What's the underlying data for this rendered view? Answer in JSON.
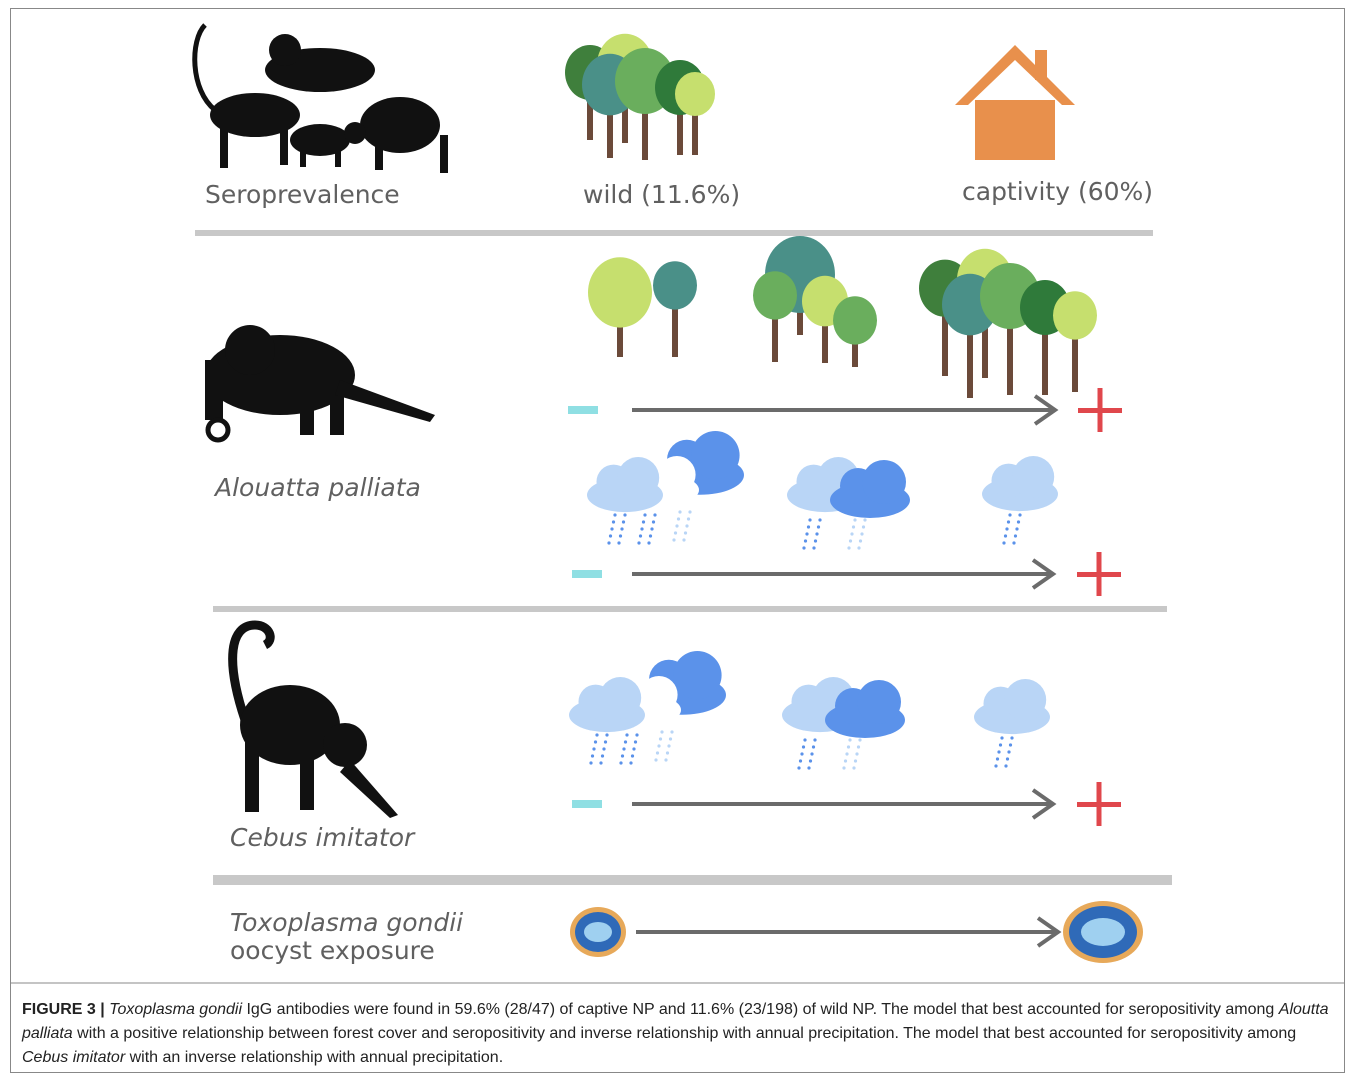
{
  "figure": {
    "labels": {
      "seroprevalence": "Seroprevalence",
      "wild": "wild (11.6%)",
      "captivity": "captivity (60%)",
      "alouatta": "Alouatta palliata",
      "cebus": "Cebus imitator",
      "toxo_line1": "Toxoplasma gondii",
      "toxo_line2": "oocyst exposure"
    },
    "caption": {
      "label": "FIGURE 3 |",
      "parts": [
        "Toxoplasma gondii",
        " IgG antibodies were found in 59.6% (28/47) of captive NP and 11.6% (23/198) of wild NP. The model that best accounted for seropositivity among ",
        "Aloutta palliata",
        " with a positive relationship between forest cover and seropositivity and inverse relationship with annual precipitation. The model that best accounted for seropositivity among ",
        "Cebus imitator",
        " with an inverse relationship with annual precipitation."
      ]
    }
  }
}
